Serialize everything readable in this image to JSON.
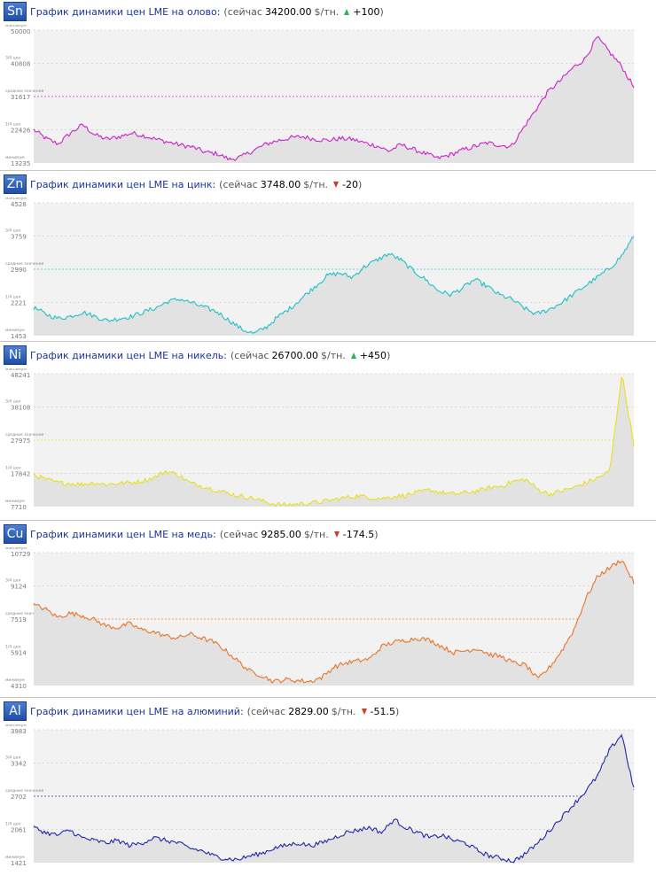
{
  "axis_labels": {
    "max": "максимум",
    "q3": "3/4 цен",
    "mid": "средние значения",
    "q1": "1/4 цен",
    "min": "минимум"
  },
  "chart_data": [
    {
      "type": "line",
      "symbol": "Sn",
      "title": "График динамики цен LME на олово:",
      "current_label": "сейчас",
      "price": "34200.00",
      "unit": "$/тн.",
      "change": "+100",
      "change_dir": "up",
      "color": "#cc22cc",
      "ticks": [
        "50000",
        "40808",
        "31617",
        "22426",
        "13235"
      ],
      "ylim": [
        13235,
        50000
      ],
      "mean": 31617,
      "series": [
        {
          "name": "Tin",
          "values": [
            22426,
            20000,
            18500,
            21500,
            23800,
            21000,
            19800,
            20500,
            21500,
            20800,
            19800,
            19000,
            18200,
            17600,
            16200,
            15800,
            14200,
            15000,
            16800,
            18500,
            19500,
            20200,
            20500,
            19800,
            19500,
            20000,
            19800,
            18800,
            18000,
            16500,
            18300,
            17000,
            15800,
            14500,
            15500,
            16800,
            17800,
            18800,
            18200,
            17800,
            23000,
            28000,
            33000,
            36000,
            39500,
            42000,
            48000,
            44000,
            40000,
            34200
          ]
        }
      ]
    },
    {
      "type": "line",
      "symbol": "Zn",
      "title": "График динамики цен LME на цинк:",
      "current_label": "сейчас",
      "price": "3748.00",
      "unit": "$/тн.",
      "change": "-20",
      "change_dir": "down",
      "color": "#20c0c8",
      "ticks": [
        "4528",
        "3759",
        "2990",
        "2221",
        "1453"
      ],
      "ylim": [
        1453,
        4528
      ],
      "mean": 2990,
      "series": [
        {
          "name": "Zinc",
          "values": [
            2100,
            1950,
            1850,
            1900,
            2000,
            1900,
            1800,
            1850,
            1900,
            2000,
            2100,
            2250,
            2300,
            2200,
            2100,
            2000,
            1800,
            1600,
            1500,
            1650,
            1900,
            2100,
            2350,
            2600,
            2850,
            2900,
            2800,
            3050,
            3200,
            3350,
            3200,
            2950,
            2750,
            2500,
            2400,
            2550,
            2750,
            2600,
            2400,
            2300,
            2100,
            1950,
            2050,
            2200,
            2400,
            2600,
            2800,
            3000,
            3300,
            3748
          ]
        }
      ]
    },
    {
      "type": "line",
      "symbol": "Ni",
      "title": "График динамики цен LME на никель:",
      "current_label": "сейчас",
      "price": "26700.00",
      "unit": "$/тн.",
      "change": "+450",
      "change_dir": "up",
      "color": "#e8e020",
      "ticks": [
        "48241",
        "38108",
        "27975",
        "17842",
        "7710"
      ],
      "ylim": [
        7710,
        48241
      ],
      "mean": 27975,
      "series": [
        {
          "name": "Nickel",
          "values": [
            17500,
            16000,
            15000,
            14800,
            14500,
            15000,
            14500,
            14800,
            15000,
            15500,
            16500,
            18500,
            17500,
            15000,
            14000,
            13000,
            12000,
            11000,
            10500,
            9500,
            8500,
            8200,
            8500,
            8800,
            9200,
            9800,
            10500,
            11000,
            10500,
            10200,
            10800,
            11200,
            12000,
            12800,
            12000,
            11500,
            12000,
            12500,
            13500,
            14000,
            15500,
            16000,
            13000,
            11500,
            12500,
            13500,
            15000,
            16500,
            18500,
            48241,
            26700
          ]
        }
      ]
    },
    {
      "type": "line",
      "symbol": "Cu",
      "title": "График динамики цен LME на медь:",
      "current_label": "сейчас",
      "price": "9285.00",
      "unit": "$/тн.",
      "change": "-174.5",
      "change_dir": "down",
      "color": "#e8752a",
      "ticks": [
        "10729",
        "9124",
        "7519",
        "5914",
        "4310"
      ],
      "ylim": [
        4310,
        10729
      ],
      "mean": 7519,
      "series": [
        {
          "name": "Copper",
          "values": [
            8200,
            8000,
            7600,
            7800,
            7700,
            7500,
            7200,
            7100,
            7300,
            7000,
            6900,
            6700,
            6600,
            6800,
            6600,
            6400,
            6000,
            5500,
            5000,
            4800,
            4500,
            4600,
            4550,
            4500,
            4700,
            5200,
            5400,
            5500,
            5600,
            6200,
            6400,
            6500,
            6600,
            6500,
            6200,
            5900,
            6000,
            6100,
            5800,
            5700,
            5400,
            5300,
            4600,
            5200,
            6000,
            7000,
            8500,
            9600,
            10000,
            10400,
            9285
          ]
        }
      ]
    },
    {
      "type": "line",
      "symbol": "Al",
      "title": "График динамики цен LME на алюминий:",
      "current_label": "сейчас",
      "price": "2829.00",
      "unit": "$/тн.",
      "change": "-51.5",
      "change_dir": "down",
      "color": "#1f2aa8",
      "ticks": [
        "3983",
        "3342",
        "2702",
        "2061",
        "1421"
      ],
      "ylim": [
        1421,
        3983
      ],
      "mean": 2702,
      "series": [
        {
          "name": "Aluminium",
          "values": [
            2100,
            2000,
            1950,
            2050,
            1900,
            1850,
            1800,
            1850,
            1750,
            1800,
            1900,
            1850,
            1800,
            1700,
            1650,
            1550,
            1500,
            1480,
            1550,
            1600,
            1700,
            1750,
            1800,
            1750,
            1800,
            1900,
            2000,
            2050,
            2100,
            2000,
            2250,
            2100,
            2000,
            1900,
            1950,
            1850,
            1800,
            1650,
            1550,
            1500,
            1450,
            1600,
            1800,
            2050,
            2300,
            2550,
            2800,
            3100,
            3600,
            3900,
            2829
          ]
        }
      ]
    }
  ]
}
